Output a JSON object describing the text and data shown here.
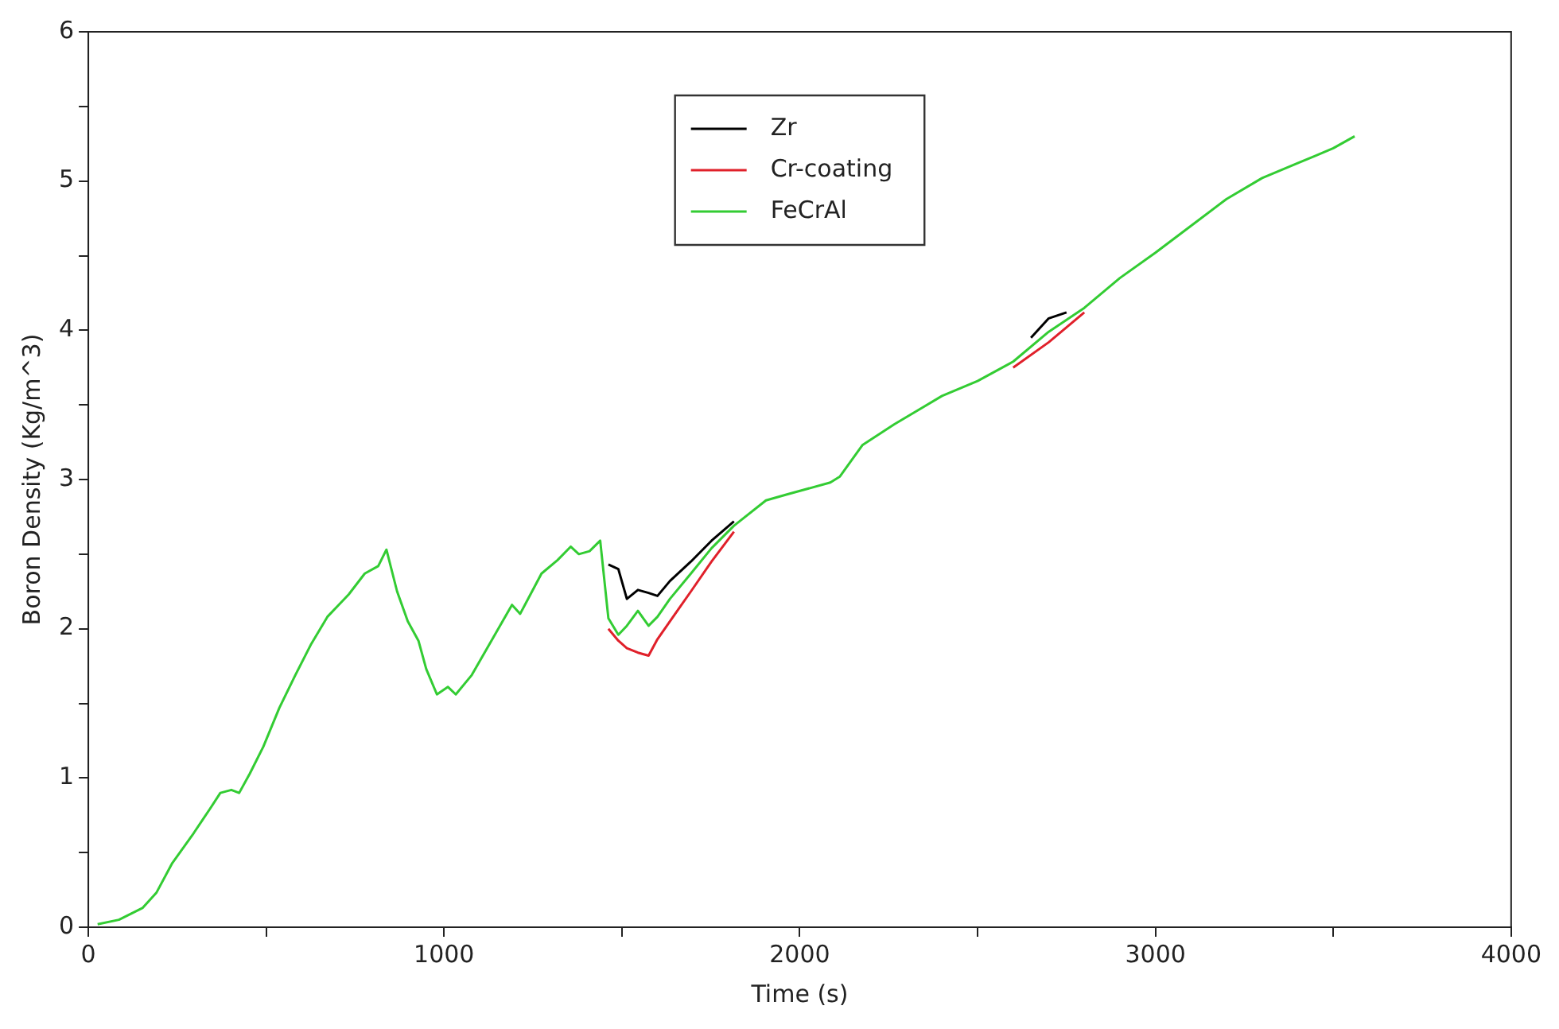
{
  "chart_data": {
    "type": "line",
    "xlabel": "Time (s)",
    "ylabel": "Boron Density (Kg/m^3)",
    "x": [
      26,
      86,
      153,
      191,
      236,
      296,
      341,
      371,
      402,
      424,
      454,
      492,
      537,
      582,
      627,
      672,
      732,
      777,
      815,
      838,
      868,
      898,
      928,
      950,
      980,
      1011,
      1033,
      1078,
      1138,
      1191,
      1214,
      1274,
      1319,
      1356,
      1379,
      1409,
      1439,
      1462,
      1490,
      1514,
      1545,
      1575,
      1600,
      1635,
      1694,
      1752,
      1815,
      1905,
      1964,
      2086,
      2113,
      2176,
      2266,
      2400,
      2500,
      2600,
      2700,
      2800,
      2900,
      3000,
      3100,
      3200,
      3300,
      3400,
      3450,
      3500,
      3560
    ],
    "series": [
      {
        "name": "Zr",
        "color": "#000000",
        "x": [
          1462,
          1490,
          1514,
          1545,
          1575,
          1600,
          1635,
          1694,
          1752,
          1815,
          2200,
          2650,
          2700,
          2750
        ],
        "values": [
          2.43,
          2.4,
          2.2,
          2.26,
          2.24,
          2.22,
          2.32,
          2.45,
          2.59,
          2.72,
          null,
          3.95,
          4.08,
          4.12
        ]
      },
      {
        "name": "Cr-coating",
        "color": "#e0202a",
        "x": [
          1462,
          1490,
          1514,
          1545,
          1575,
          1600,
          1635,
          1694,
          1752,
          1815,
          2200,
          2600,
          2700,
          2800
        ],
        "values": [
          2.0,
          1.92,
          1.87,
          1.84,
          1.82,
          1.93,
          2.05,
          2.25,
          2.45,
          2.65,
          null,
          3.75,
          3.92,
          4.12
        ]
      },
      {
        "name": "FeCrAl",
        "color": "#33cc33",
        "values": [
          0.02,
          0.05,
          0.13,
          0.23,
          0.43,
          0.63,
          0.79,
          0.9,
          0.92,
          0.9,
          1.03,
          1.21,
          1.47,
          1.69,
          1.9,
          2.08,
          2.23,
          2.37,
          2.42,
          2.53,
          2.25,
          2.05,
          1.92,
          1.73,
          1.56,
          1.61,
          1.56,
          1.69,
          1.94,
          2.16,
          2.1,
          2.37,
          2.46,
          2.55,
          2.5,
          2.52,
          2.59,
          2.07,
          1.96,
          2.02,
          2.12,
          2.02,
          2.08,
          2.2,
          2.37,
          2.54,
          2.69,
          2.86,
          2.9,
          2.98,
          3.02,
          3.23,
          3.37,
          3.56,
          3.66,
          3.79,
          3.99,
          4.15,
          4.35,
          4.52,
          4.7,
          4.88,
          5.02,
          5.12,
          5.17,
          5.22,
          5.3
        ]
      }
    ],
    "xlim": [
      0,
      4000
    ],
    "xticks": [
      0,
      {
        "value": 500,
        "label": null
      },
      1000,
      {
        "value": 1500,
        "label": null
      },
      2000,
      {
        "value": 2500,
        "label": null
      },
      3000,
      {
        "value": 3500,
        "label": null
      },
      4000
    ],
    "ylim": [
      0,
      6
    ],
    "yticks": [
      0,
      {
        "value": 0.5,
        "label": null
      },
      1,
      {
        "value": 1.5,
        "label": null
      },
      2,
      {
        "value": 2.5,
        "label": null
      },
      3,
      {
        "value": 3.5,
        "label": null
      },
      4,
      {
        "value": 4.5,
        "label": null
      },
      5,
      {
        "value": 5.5,
        "label": null
      },
      6
    ],
    "legend": "top"
  }
}
